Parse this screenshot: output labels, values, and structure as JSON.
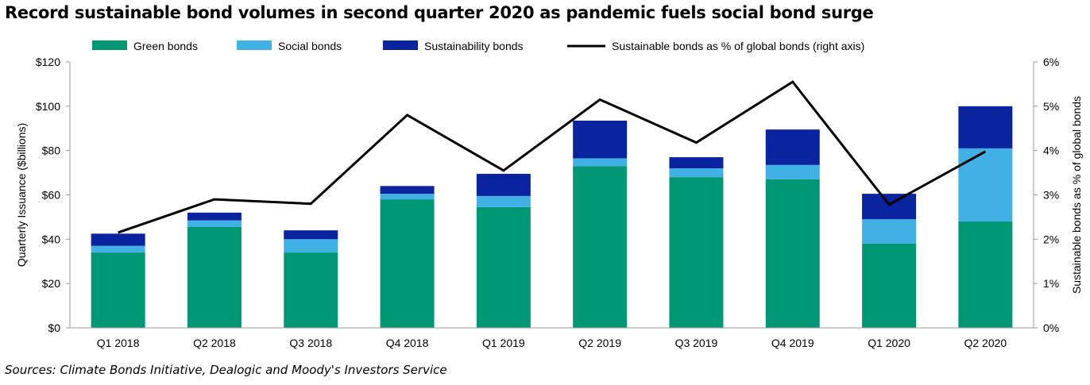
{
  "title": "Record sustainable bond volumes in second quarter 2020 as pandemic fuels social bond surge",
  "source": "Sources: Climate Bonds Initiative, Dealogic and Moody's Investors Service",
  "colors": {
    "green": "#009874",
    "social": "#41B0E4",
    "sustainability": "#0A24A0",
    "line": "#000000",
    "axis": "#999999"
  },
  "chart_data": {
    "type": "bar",
    "stacked": true,
    "categories": [
      "Q1 2018",
      "Q2 2018",
      "Q3 2018",
      "Q4 2018",
      "Q1 2019",
      "Q2 2019",
      "Q3 2019",
      "Q4 2019",
      "Q1 2020",
      "Q2 2020"
    ],
    "series": [
      {
        "name": "Green bonds",
        "values": [
          34,
          45.5,
          34,
          58,
          54.5,
          73,
          68,
          67,
          38,
          48
        ]
      },
      {
        "name": "Social bonds",
        "values": [
          3,
          3,
          6,
          2.5,
          5,
          3.5,
          4,
          6.5,
          11,
          33
        ]
      },
      {
        "name": "Sustainability bonds",
        "values": [
          5.5,
          3.5,
          4,
          3.5,
          10,
          17,
          5,
          16,
          11.5,
          19
        ]
      }
    ],
    "line_series": {
      "name": "Sustainable bonds as % of global bonds (right axis)",
      "axis": "right",
      "values": [
        2.15,
        2.9,
        2.8,
        4.8,
        3.55,
        5.15,
        4.18,
        5.55,
        2.78,
        3.98
      ]
    },
    "ylabel": "Quarterly Issuance ($billions)",
    "y2label": "Sustainable bonds as % of global bonds",
    "ylim": [
      0,
      120
    ],
    "y2lim": [
      0,
      6
    ],
    "yticks": [
      "$0",
      "$20",
      "$40",
      "$60",
      "$80",
      "$100",
      "$120"
    ],
    "y2ticks": [
      "0%",
      "1%",
      "2%",
      "3%",
      "4%",
      "5%",
      "6%"
    ],
    "legend_position": "top",
    "grid": false
  }
}
